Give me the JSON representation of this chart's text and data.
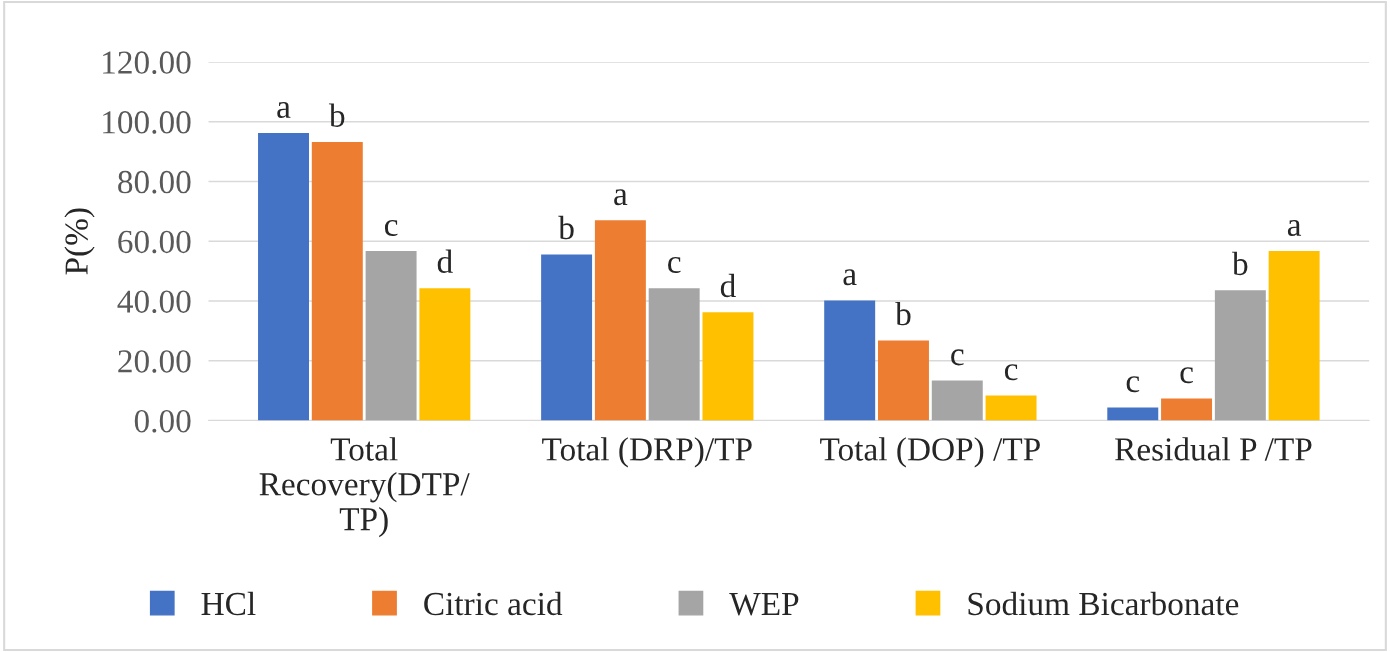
{
  "chart_data": {
    "type": "bar",
    "ylabel": "P(%)",
    "categories": [
      "Total\nRecovery(DTP/\nTP)",
      "Total (DRP)/TP",
      "Total (DOP) /TP",
      "Residual P /TP"
    ],
    "series": [
      {
        "name": "HCl",
        "color": "#4472c4",
        "values": [
          96.2,
          55.6,
          40.2,
          4.4
        ],
        "value_labels": [
          "a",
          "b",
          "a",
          "c"
        ]
      },
      {
        "name": "Citric acid",
        "color": "#ed7d31",
        "values": [
          93.2,
          67.0,
          26.8,
          7.4
        ],
        "value_labels": [
          "b",
          "a",
          "b",
          "c"
        ]
      },
      {
        "name": "WEP",
        "color": "#a5a5a5",
        "values": [
          56.7,
          44.3,
          13.4,
          43.6
        ],
        "value_labels": [
          "c",
          "c",
          "c",
          "b"
        ]
      },
      {
        "name": "Sodium Bicarbonate",
        "color": "#ffc000",
        "values": [
          44.3,
          36.2,
          8.4,
          56.7
        ],
        "value_labels": [
          "d",
          "d",
          "c",
          "a"
        ]
      }
    ],
    "ylim": [
      0,
      120
    ],
    "yticks": [
      {
        "value": 0,
        "label": "0.00"
      },
      {
        "value": 20,
        "label": "20.00"
      },
      {
        "value": 40,
        "label": "40.00"
      },
      {
        "value": 60,
        "label": "60.00"
      },
      {
        "value": 80,
        "label": "80.00"
      },
      {
        "value": 100,
        "label": "100.00"
      },
      {
        "value": 120,
        "label": "120.00"
      }
    ],
    "grid": "y",
    "legend": "bottom"
  }
}
